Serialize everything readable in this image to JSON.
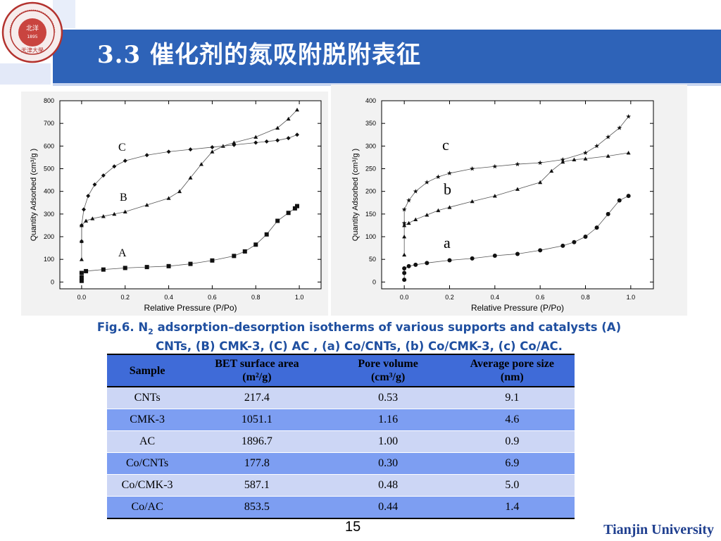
{
  "slide": {
    "title": "3.3 催化剂的氮吸附脱附表征",
    "page_number": "15",
    "footer": "Tianjin University",
    "logo_text": "天津大学",
    "logo_ring_text": "TIANJIN UNIVERSITY (PEIYANG UNIVERSITY)",
    "logo_year": "1895",
    "colors": {
      "title_band": "#2e63b8",
      "caption": "#1f4fa0",
      "table_header": "#3f6bd8",
      "table_row_light": "#ccd6f5",
      "table_row_dark": "#7d9ef2"
    }
  },
  "caption": {
    "line1_pre": "Fig.6. N",
    "line1_sub": "2",
    "line1_post": " adsorption–desorption isotherms of various supports and catalysts (A)",
    "line2": "CNTs, (B) CMK-3, (C) AC , (a) Co/CNTs, (b) Co/CMK-3, (c) Co/AC."
  },
  "table": {
    "headers": [
      {
        "line1": "Sample",
        "line2": ""
      },
      {
        "line1": "BET surface area",
        "line2": "(m²/g)"
      },
      {
        "line1": "Pore volume",
        "line2": "(cm³/g)"
      },
      {
        "line1": "Average pore size",
        "line2": "(nm)"
      }
    ],
    "rows": [
      [
        "CNTs",
        "217.4",
        "0.53",
        "9.1"
      ],
      [
        "CMK-3",
        "1051.1",
        "1.16",
        "4.6"
      ],
      [
        "AC",
        "1896.7",
        "1.00",
        "0.9"
      ],
      [
        "Co/CNTs",
        "177.8",
        "0.30",
        "6.9"
      ],
      [
        "Co/CMK-3",
        "587.1",
        "0.48",
        "5.0"
      ],
      [
        "Co/AC",
        "853.5",
        "0.44",
        "1.4"
      ]
    ]
  },
  "chart_data": [
    {
      "type": "line",
      "xlabel": "Relative Pressure (P/Po)",
      "ylabel": "Quantity Adsorbed (cm³/g )",
      "xlim": [
        -0.1,
        1.1
      ],
      "ylim": [
        -30,
        800
      ],
      "xticks": [
        "0.0",
        "0.2",
        "0.4",
        "0.6",
        "0.8",
        "1.0"
      ],
      "yticks": [
        "0",
        "100",
        "200",
        "300",
        "400",
        "500",
        "600",
        "700",
        "800"
      ],
      "series": [
        {
          "name": "A",
          "marker": "square",
          "x": [
            0.0,
            0.0,
            0.0,
            0.02,
            0.1,
            0.2,
            0.3,
            0.4,
            0.5,
            0.6,
            0.7,
            0.75,
            0.8,
            0.85,
            0.9,
            0.95,
            0.98,
            0.99
          ],
          "y": [
            5,
            20,
            40,
            48,
            55,
            62,
            66,
            70,
            80,
            95,
            115,
            135,
            165,
            210,
            270,
            305,
            325,
            335
          ]
        },
        {
          "name": "B",
          "marker": "triangle",
          "x": [
            0.0,
            0.0,
            0.0,
            0.02,
            0.05,
            0.1,
            0.15,
            0.2,
            0.3,
            0.4,
            0.45,
            0.5,
            0.55,
            0.6,
            0.65,
            0.7,
            0.8,
            0.9,
            0.95,
            0.99
          ],
          "y": [
            100,
            180,
            250,
            270,
            280,
            290,
            300,
            310,
            340,
            370,
            400,
            460,
            520,
            575,
            600,
            615,
            640,
            680,
            720,
            760
          ]
        },
        {
          "name": "C",
          "marker": "diamond",
          "x": [
            0.0,
            0.0,
            0.01,
            0.03,
            0.06,
            0.1,
            0.15,
            0.2,
            0.3,
            0.4,
            0.5,
            0.6,
            0.7,
            0.8,
            0.85,
            0.9,
            0.95,
            0.99
          ],
          "y": [
            180,
            250,
            320,
            380,
            430,
            470,
            510,
            535,
            560,
            575,
            585,
            595,
            605,
            615,
            620,
            625,
            635,
            650
          ]
        }
      ],
      "series_labels": [
        "A",
        "B",
        "C"
      ]
    },
    {
      "type": "line",
      "xlabel": "Relative Pressure (P/Po)",
      "ylabel": "Quantity Adsorbed (cm³/g )",
      "xlim": [
        -0.1,
        1.1
      ],
      "ylim": [
        -15,
        400
      ],
      "xticks": [
        "0.0",
        "0.2",
        "0.4",
        "0.6",
        "0.8",
        "1.0"
      ],
      "yticks": [
        "0",
        "50",
        "100",
        "150",
        "200",
        "250",
        "300",
        "350",
        "400"
      ],
      "series": [
        {
          "name": "a",
          "marker": "circle",
          "x": [
            0.0,
            0.0,
            0.0,
            0.02,
            0.05,
            0.1,
            0.2,
            0.3,
            0.4,
            0.5,
            0.6,
            0.7,
            0.75,
            0.8,
            0.85,
            0.9,
            0.95,
            0.99
          ],
          "y": [
            5,
            20,
            30,
            35,
            38,
            42,
            48,
            52,
            58,
            62,
            70,
            80,
            88,
            100,
            120,
            150,
            180,
            190
          ]
        },
        {
          "name": "b",
          "marker": "triangle",
          "x": [
            0.0,
            0.0,
            0.0,
            0.02,
            0.05,
            0.1,
            0.15,
            0.2,
            0.3,
            0.4,
            0.5,
            0.6,
            0.65,
            0.7,
            0.75,
            0.8,
            0.9,
            0.99
          ],
          "y": [
            60,
            100,
            125,
            130,
            138,
            148,
            158,
            165,
            178,
            190,
            205,
            220,
            245,
            265,
            270,
            272,
            278,
            285
          ]
        },
        {
          "name": "c",
          "marker": "star",
          "x": [
            0.0,
            0.0,
            0.02,
            0.05,
            0.1,
            0.15,
            0.2,
            0.3,
            0.4,
            0.5,
            0.6,
            0.7,
            0.8,
            0.85,
            0.9,
            0.95,
            0.99
          ],
          "y": [
            130,
            160,
            180,
            200,
            220,
            232,
            240,
            250,
            255,
            260,
            263,
            270,
            285,
            300,
            320,
            340,
            365
          ]
        }
      ],
      "series_labels": [
        "c",
        "b",
        "a"
      ]
    }
  ]
}
